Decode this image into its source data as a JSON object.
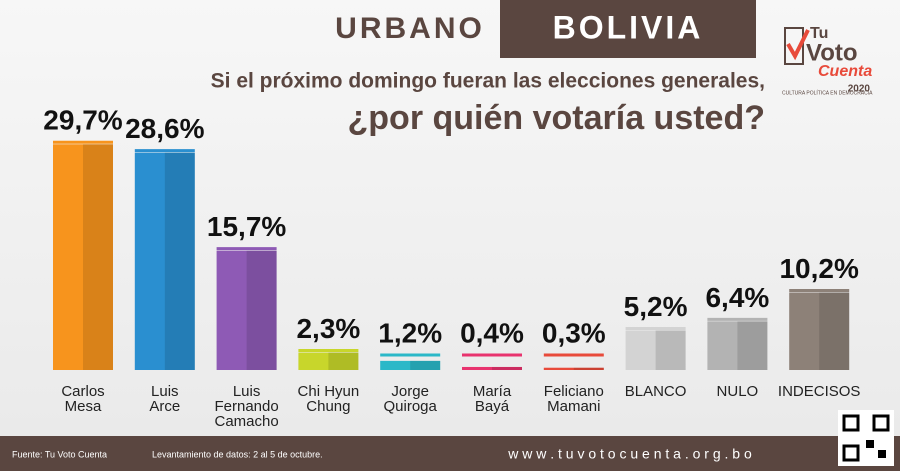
{
  "header": {
    "left": "URBANO",
    "right": "BOLIVIA",
    "question_1": "Si el próximo domingo fueran las elecciones generales,",
    "question_2": "¿por quién votaría usted?"
  },
  "logo": {
    "line_1": "Tu",
    "line_2": "Voto",
    "line_3": "Cuenta",
    "tagline": "CULTURA POLÍTICA EN DEMOCRACIA",
    "year": "2020"
  },
  "chart_data": {
    "type": "bar",
    "categories": [
      "Carlos\nMesa",
      "Luis\nArce",
      "Luis\nFernando\nCamacho",
      "Chi Hyun\nChung",
      "Jorge\nQuiroga",
      "María\nBayá",
      "Feliciano\nMamani",
      "BLANCO",
      "NULO",
      "INDECISOS"
    ],
    "values": [
      29.7,
      28.6,
      15.7,
      2.3,
      1.2,
      0.4,
      0.3,
      5.2,
      6.4,
      10.2
    ],
    "value_labels": [
      "29,7%",
      "28,6%",
      "15,7%",
      "2,3%",
      "1,2%",
      "0,4%",
      "0,3%",
      "5,2%",
      "6,4%",
      "10,2%"
    ],
    "colors": [
      "#f7941d",
      "#2a8fd0",
      "#8e5ab5",
      "#c8d62b",
      "#2bb8c8",
      "#e8336e",
      "#e84a3a",
      "#d3d3d3",
      "#b3b3b3",
      "#8d8178"
    ]
  },
  "footer": {
    "source": "Fuente: Tu Voto Cuenta",
    "fieldwork": "Levantamiento de datos: 2 al 5 de octubre.",
    "url": "w w w . t u v o t o c u e n t a . o r g . b o"
  }
}
